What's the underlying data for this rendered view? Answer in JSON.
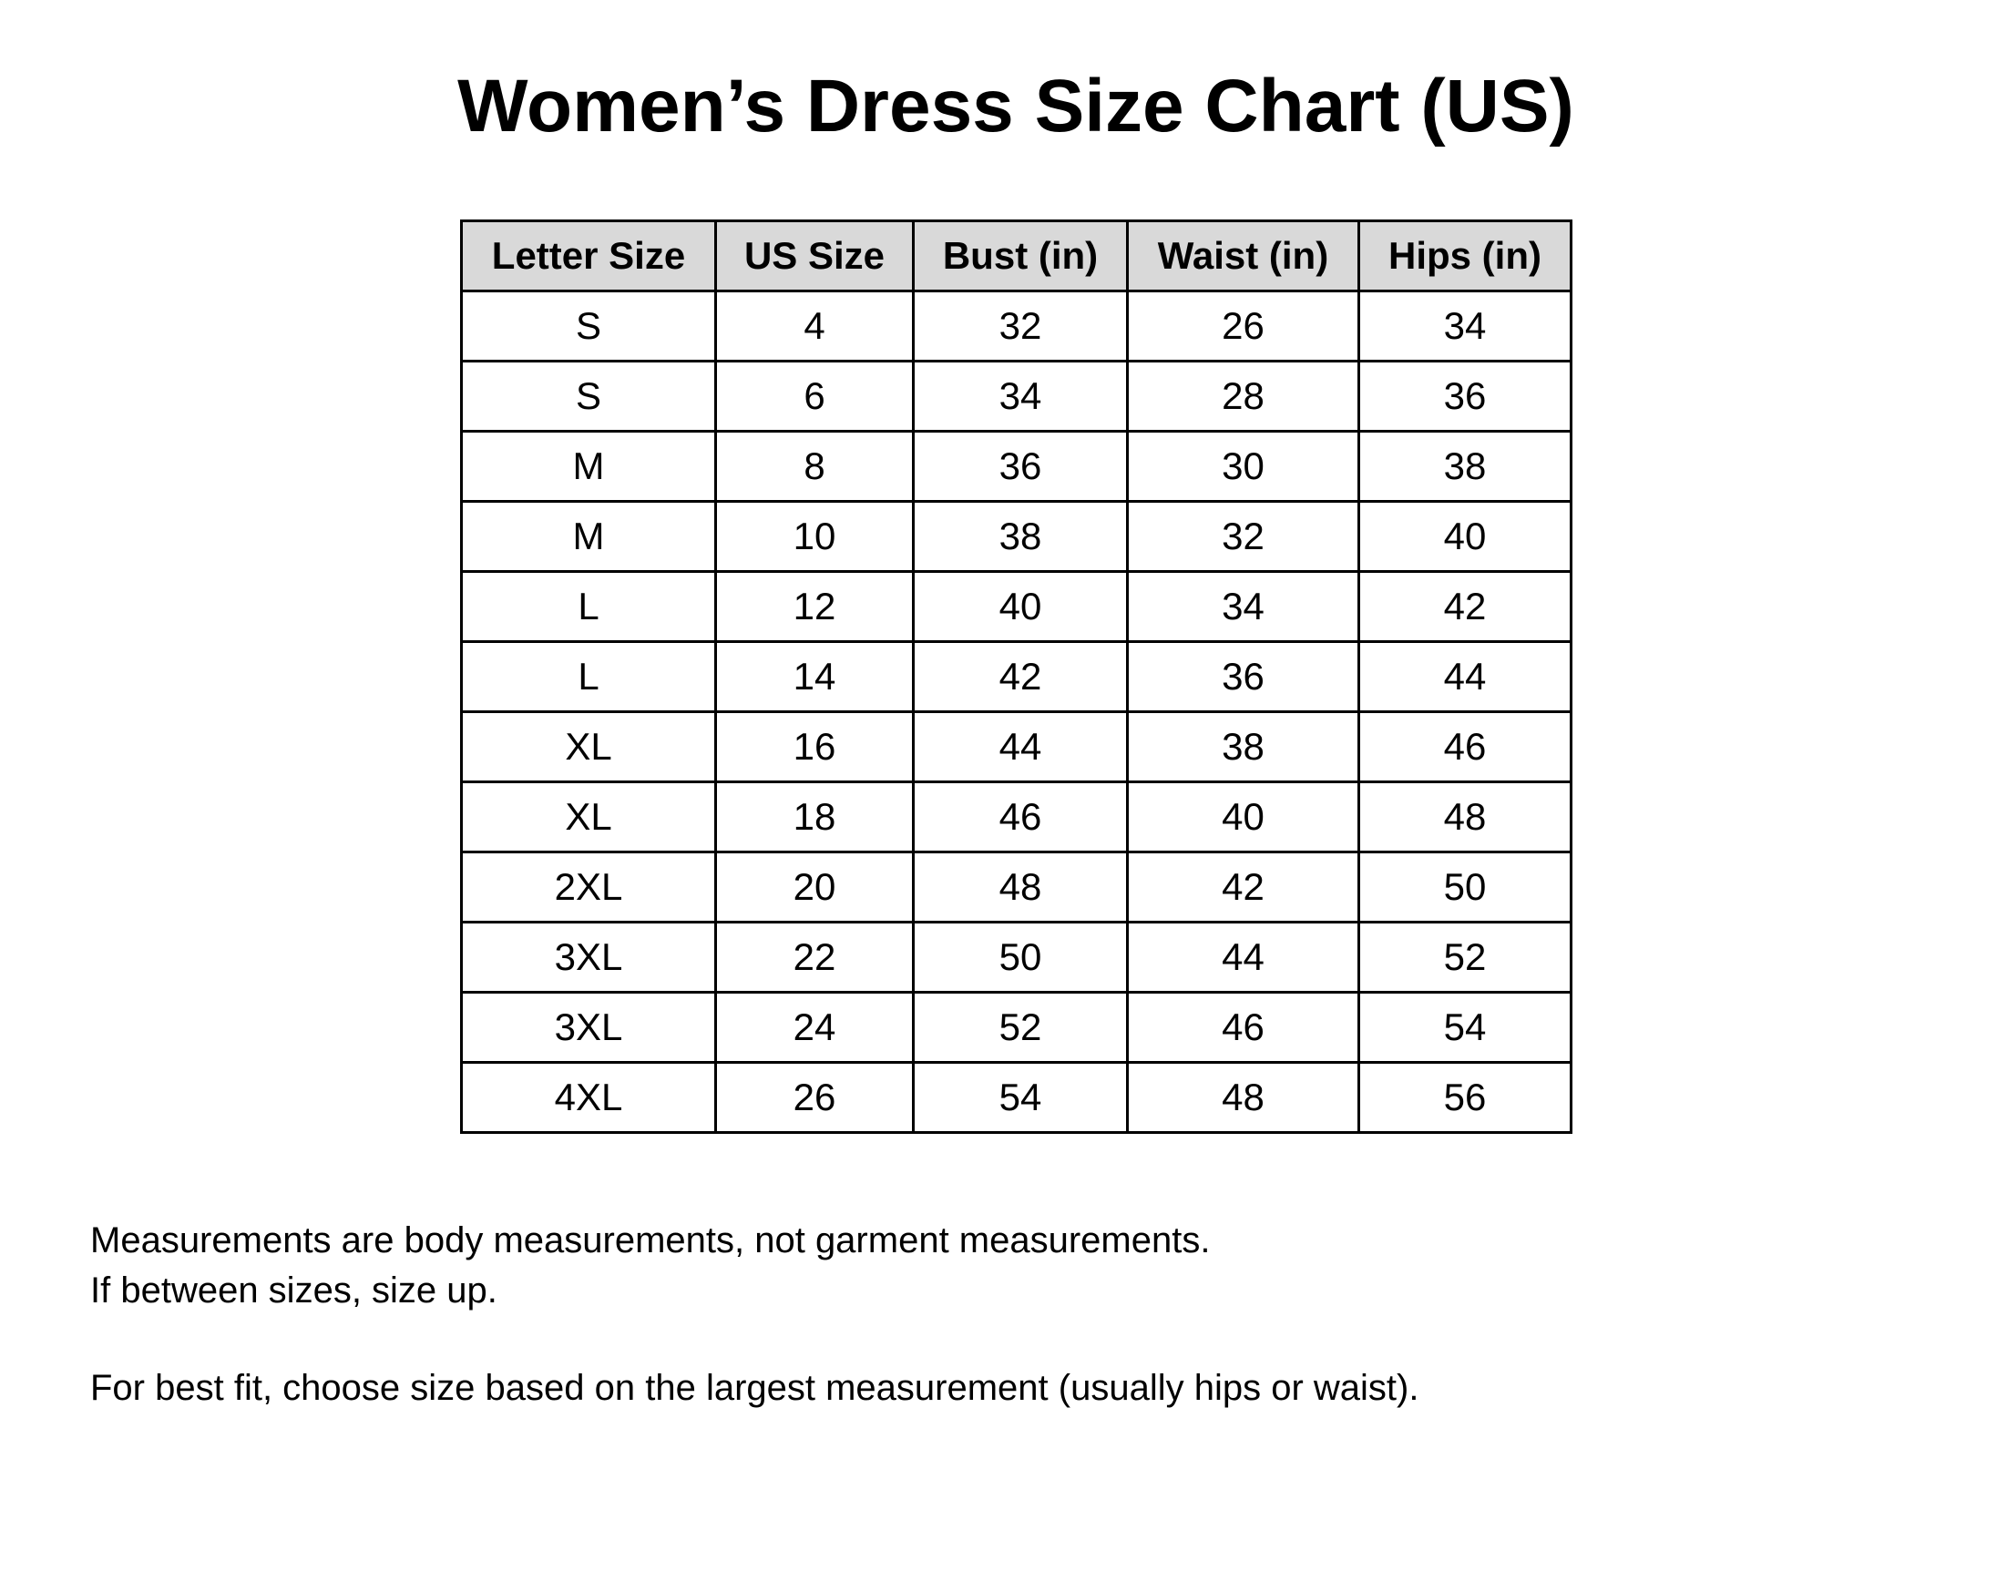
{
  "title": "Women’s Dress Size Chart (US)",
  "table": {
    "headers": [
      "Letter Size",
      "US Size",
      "Bust (in)",
      "Waist (in)",
      "Hips (in)"
    ],
    "rows": [
      [
        "S",
        "4",
        "32",
        "26",
        "34"
      ],
      [
        "S",
        "6",
        "34",
        "28",
        "36"
      ],
      [
        "M",
        "8",
        "36",
        "30",
        "38"
      ],
      [
        "M",
        "10",
        "38",
        "32",
        "40"
      ],
      [
        "L",
        "12",
        "40",
        "34",
        "42"
      ],
      [
        "L",
        "14",
        "42",
        "36",
        "44"
      ],
      [
        "XL",
        "16",
        "44",
        "38",
        "46"
      ],
      [
        "XL",
        "18",
        "46",
        "40",
        "48"
      ],
      [
        "2XL",
        "20",
        "48",
        "42",
        "50"
      ],
      [
        "3XL",
        "22",
        "50",
        "44",
        "52"
      ],
      [
        "3XL",
        "24",
        "52",
        "46",
        "54"
      ],
      [
        "4XL",
        "26",
        "54",
        "48",
        "56"
      ]
    ],
    "header_bg": "#d9d9d9"
  },
  "notes": [
    "Measurements are body measurements, not garment measurements.",
    "If between sizes, size up.",
    "For best fit, choose size based on the largest measurement (usually hips or waist)."
  ]
}
